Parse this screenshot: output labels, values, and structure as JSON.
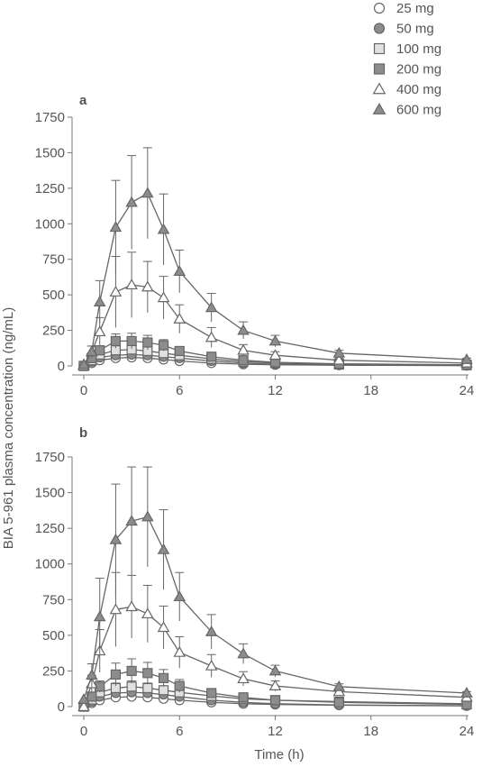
{
  "chart_data": {
    "type": "line",
    "ylabel": "BIA 5-961 plasma concentration (ng/mL)",
    "xlabel": "Time (h)",
    "legend": {
      "placement": "top-right",
      "entries": [
        {
          "label": "25 mg",
          "marker": "circle-open"
        },
        {
          "label": "50 mg",
          "marker": "circle-filled"
        },
        {
          "label": "100 mg",
          "marker": "square-open"
        },
        {
          "label": "200 mg",
          "marker": "square-filled"
        },
        {
          "label": "400 mg",
          "marker": "triangle-open"
        },
        {
          "label": "600 mg",
          "marker": "triangle-filled"
        }
      ]
    },
    "colors": {
      "line": "#666666",
      "filled_marker": "#8c8c8c",
      "open_marker": "#ffffff",
      "open_square": "#e0e0e0"
    },
    "x_ticks": [
      0,
      6,
      12,
      18,
      24
    ],
    "y_ticks": [
      0,
      250,
      500,
      750,
      1000,
      1250,
      1500,
      1750
    ],
    "xlim": [
      0,
      24
    ],
    "ylim": [
      0,
      1750
    ],
    "panels": [
      {
        "label": "a",
        "series": [
          {
            "name": "25 mg",
            "x": [
              0,
              0.5,
              1,
              2,
              3,
              4,
              5,
              6,
              8,
              10,
              12,
              16,
              24
            ],
            "y": [
              0,
              20,
              40,
              55,
              60,
              55,
              45,
              35,
              20,
              12,
              8,
              5,
              2
            ],
            "err": [
              0,
              5,
              10,
              12,
              15,
              15,
              12,
              10,
              6,
              4,
              3,
              2,
              1
            ]
          },
          {
            "name": "50 mg",
            "x": [
              0,
              0.5,
              1,
              2,
              3,
              4,
              5,
              6,
              8,
              10,
              12,
              16,
              24
            ],
            "y": [
              0,
              30,
              60,
              75,
              80,
              75,
              65,
              55,
              35,
              20,
              12,
              6,
              3
            ],
            "err": [
              0,
              8,
              15,
              20,
              20,
              20,
              18,
              15,
              10,
              6,
              4,
              3,
              1
            ]
          },
          {
            "name": "100 mg",
            "x": [
              0,
              0.5,
              1,
              2,
              3,
              4,
              5,
              6,
              8,
              10,
              12,
              16,
              24
            ],
            "y": [
              0,
              40,
              80,
              110,
              115,
              105,
              90,
              75,
              50,
              30,
              20,
              10,
              5
            ],
            "err": [
              0,
              10,
              20,
              30,
              35,
              30,
              25,
              20,
              12,
              8,
              6,
              4,
              2
            ]
          },
          {
            "name": "200 mg",
            "x": [
              0,
              0.5,
              1,
              2,
              3,
              4,
              5,
              6,
              8,
              10,
              12,
              16,
              24
            ],
            "y": [
              0,
              55,
              110,
              175,
              175,
              165,
              145,
              105,
              65,
              40,
              25,
              15,
              8
            ],
            "err": [
              0,
              15,
              30,
              50,
              55,
              50,
              40,
              30,
              20,
              12,
              8,
              5,
              3
            ]
          },
          {
            "name": "400 mg",
            "x": [
              0,
              0.5,
              1,
              2,
              3,
              4,
              5,
              6,
              8,
              10,
              12,
              16,
              24
            ],
            "y": [
              0,
              100,
              240,
              520,
              570,
              555,
              480,
              330,
              200,
              110,
              75,
              40,
              20
            ],
            "err": [
              0,
              40,
              100,
              250,
              230,
              180,
              150,
              100,
              70,
              40,
              25,
              15,
              8
            ]
          },
          {
            "name": "600 mg",
            "x": [
              0,
              0.5,
              1,
              2,
              3,
              4,
              5,
              6,
              8,
              10,
              12,
              16,
              24
            ],
            "y": [
              10,
              100,
              450,
              975,
              1150,
              1215,
              960,
              665,
              410,
              250,
              175,
              90,
              45
            ],
            "err": [
              0,
              40,
              150,
              330,
              330,
              320,
              250,
              150,
              100,
              60,
              40,
              20,
              10
            ]
          }
        ]
      },
      {
        "label": "b",
        "series": [
          {
            "name": "25 mg",
            "x": [
              0,
              0.5,
              1,
              2,
              3,
              4,
              5,
              6,
              8,
              10,
              12,
              16,
              24
            ],
            "y": [
              0,
              25,
              45,
              65,
              70,
              65,
              55,
              45,
              30,
              20,
              15,
              10,
              5
            ],
            "err": [
              0,
              6,
              10,
              15,
              15,
              15,
              12,
              10,
              8,
              5,
              4,
              3,
              2
            ]
          },
          {
            "name": "50 mg",
            "x": [
              0,
              0.5,
              1,
              2,
              3,
              4,
              5,
              6,
              8,
              10,
              12,
              16,
              24
            ],
            "y": [
              0,
              35,
              70,
              95,
              100,
              95,
              85,
              70,
              45,
              30,
              20,
              12,
              6
            ],
            "err": [
              0,
              8,
              15,
              20,
              25,
              22,
              20,
              15,
              10,
              8,
              5,
              3,
              2
            ]
          },
          {
            "name": "100 mg",
            "x": [
              0,
              0.5,
              1,
              2,
              3,
              4,
              5,
              6,
              8,
              10,
              12,
              16,
              24
            ],
            "y": [
              0,
              50,
              100,
              130,
              140,
              130,
              115,
              100,
              75,
              55,
              45,
              35,
              20
            ],
            "err": [
              0,
              12,
              25,
              35,
              40,
              35,
              30,
              25,
              18,
              12,
              10,
              8,
              5
            ]
          },
          {
            "name": "200 mg",
            "x": [
              0,
              0.5,
              1,
              2,
              3,
              4,
              5,
              6,
              8,
              10,
              12,
              16,
              24
            ],
            "y": [
              0,
              70,
              140,
              225,
              250,
              235,
              200,
              145,
              95,
              65,
              45,
              30,
              15
            ],
            "err": [
              0,
              20,
              40,
              80,
              85,
              75,
              60,
              45,
              30,
              20,
              15,
              10,
              5
            ]
          },
          {
            "name": "400 mg",
            "x": [
              0,
              0.5,
              1,
              2,
              3,
              4,
              5,
              6,
              8,
              10,
              12,
              16,
              24
            ],
            "y": [
              0,
              160,
              390,
              680,
              700,
              650,
              555,
              380,
              285,
              195,
              145,
              105,
              65
            ],
            "err": [
              0,
              60,
              150,
              260,
              220,
              200,
              150,
              110,
              80,
              50,
              35,
              20,
              12
            ]
          },
          {
            "name": "600 mg",
            "x": [
              0,
              0.5,
              1,
              2,
              3,
              4,
              5,
              6,
              8,
              10,
              12,
              16,
              24
            ],
            "y": [
              50,
              220,
              630,
              1170,
              1300,
              1330,
              1100,
              770,
              525,
              370,
              250,
              140,
              95
            ],
            "err": [
              0,
              80,
              270,
              390,
              380,
              350,
              280,
              170,
              120,
              70,
              40,
              20,
              10
            ]
          }
        ]
      }
    ]
  }
}
